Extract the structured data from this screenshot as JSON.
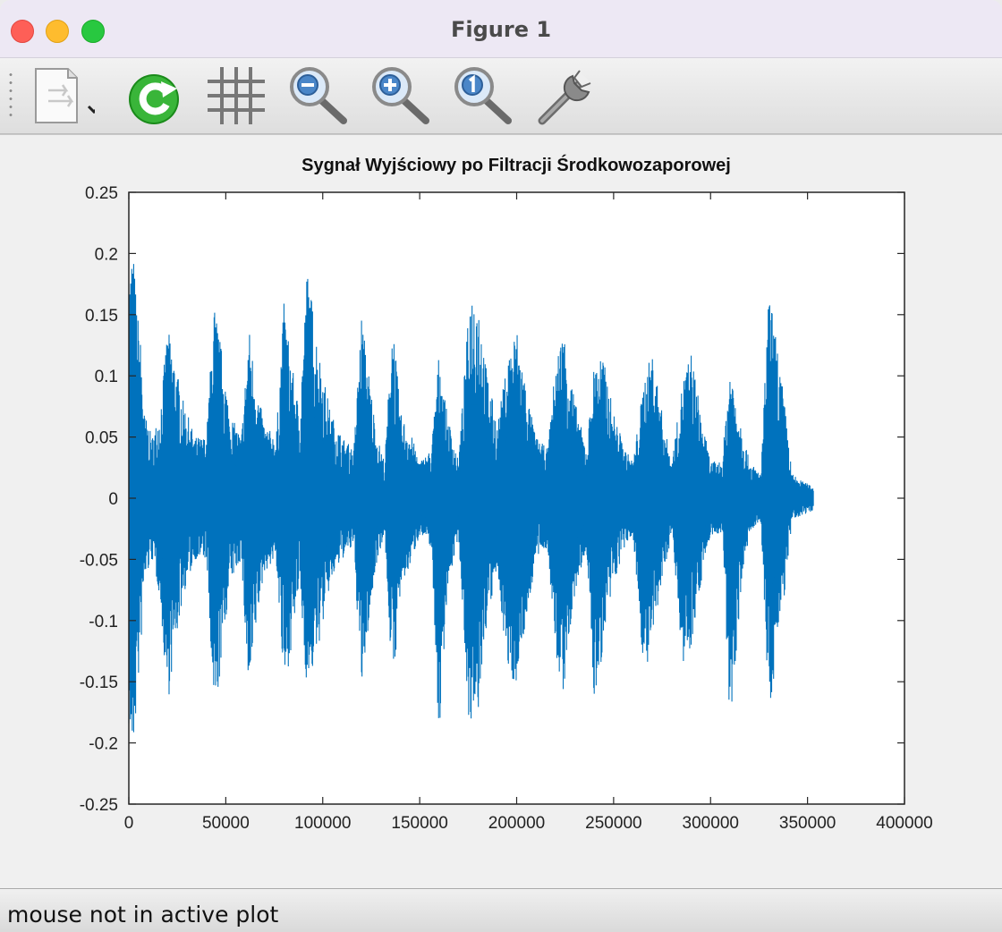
{
  "window": {
    "title": "Figure 1"
  },
  "toolbar": {
    "items": [
      {
        "name": "save-figure",
        "icon": "document-save-icon"
      },
      {
        "name": "reset-axes",
        "icon": "refresh-icon"
      },
      {
        "name": "toggle-grid",
        "icon": "grid-icon"
      },
      {
        "name": "zoom-out",
        "icon": "zoom-out-icon"
      },
      {
        "name": "zoom-in",
        "icon": "zoom-in-icon"
      },
      {
        "name": "zoom-reset",
        "icon": "zoom-1-icon"
      },
      {
        "name": "figure-properties",
        "icon": "wrench-icon"
      }
    ]
  },
  "status": {
    "text": "mouse not in active plot"
  },
  "colors": {
    "line": "#0072bd",
    "background": "#f0f0f0",
    "axes": "#ffffff"
  },
  "chart_data": {
    "type": "line",
    "title": "Sygnał Wyjściowy po Filtracji Środkowozaporowej",
    "xlabel": "",
    "ylabel": "",
    "xlim": [
      0,
      400000
    ],
    "ylim": [
      -0.25,
      0.25
    ],
    "xticks": [
      "0",
      "50000",
      "100000",
      "150000",
      "200000",
      "250000",
      "300000",
      "350000",
      "400000"
    ],
    "yticks": [
      "0.25",
      "0.2",
      "0.15",
      "0.1",
      "0.05",
      "0",
      "-0.05",
      "-0.1",
      "-0.15",
      "-0.2",
      "-0.25"
    ],
    "grid": false,
    "series": [
      {
        "name": "",
        "note_envelope": {
          "x": [
            0,
            2000,
            4000,
            6000,
            8000,
            12000,
            16000,
            20000,
            24000,
            28000,
            34000,
            40000,
            44000,
            48000,
            52000,
            58000,
            62000,
            66000,
            70000,
            76000,
            80000,
            84000,
            88000,
            92000,
            98000,
            104000,
            110000,
            116000,
            120000,
            124000,
            128000,
            132000,
            136000,
            140000,
            146000,
            150000,
            156000,
            160000,
            164000,
            170000,
            176000,
            180000,
            184000,
            190000,
            196000,
            200000,
            206000,
            210000,
            216000,
            220000,
            224000,
            230000,
            236000,
            240000,
            244000,
            250000,
            256000,
            260000,
            266000,
            270000,
            276000,
            280000,
            286000,
            290000,
            296000,
            300000,
            306000,
            310000,
            316000,
            320000,
            326000,
            330000,
            334000,
            338000,
            342000,
            346000,
            350000,
            353000
          ],
          "upper": [
            0.18,
            0.21,
            0.16,
            0.13,
            0.07,
            0.05,
            0.07,
            0.14,
            0.11,
            0.08,
            0.05,
            0.05,
            0.16,
            0.12,
            0.07,
            0.05,
            0.14,
            0.09,
            0.06,
            0.05,
            0.16,
            0.11,
            0.07,
            0.19,
            0.12,
            0.07,
            0.05,
            0.04,
            0.15,
            0.1,
            0.05,
            0.03,
            0.15,
            0.07,
            0.05,
            0.03,
            0.04,
            0.12,
            0.07,
            0.03,
            0.17,
            0.17,
            0.11,
            0.06,
            0.12,
            0.14,
            0.08,
            0.05,
            0.04,
            0.11,
            0.14,
            0.08,
            0.04,
            0.11,
            0.12,
            0.07,
            0.04,
            0.03,
            0.1,
            0.12,
            0.06,
            0.03,
            0.1,
            0.12,
            0.06,
            0.03,
            0.03,
            0.11,
            0.06,
            0.03,
            0.02,
            0.17,
            0.13,
            0.08,
            0.02,
            0.015,
            0.012,
            0.01
          ],
          "lower": [
            -0.19,
            -0.22,
            -0.17,
            -0.13,
            -0.07,
            -0.05,
            -0.08,
            -0.17,
            -0.12,
            -0.08,
            -0.05,
            -0.05,
            -0.19,
            -0.13,
            -0.07,
            -0.05,
            -0.17,
            -0.1,
            -0.06,
            -0.05,
            -0.16,
            -0.12,
            -0.07,
            -0.16,
            -0.12,
            -0.07,
            -0.05,
            -0.04,
            -0.16,
            -0.1,
            -0.05,
            -0.03,
            -0.16,
            -0.08,
            -0.05,
            -0.03,
            -0.04,
            -0.2,
            -0.08,
            -0.03,
            -0.2,
            -0.18,
            -0.11,
            -0.06,
            -0.15,
            -0.15,
            -0.09,
            -0.05,
            -0.04,
            -0.13,
            -0.16,
            -0.08,
            -0.04,
            -0.17,
            -0.13,
            -0.07,
            -0.04,
            -0.03,
            -0.15,
            -0.12,
            -0.06,
            -0.03,
            -0.14,
            -0.12,
            -0.06,
            -0.03,
            -0.03,
            -0.19,
            -0.07,
            -0.03,
            -0.02,
            -0.18,
            -0.13,
            -0.08,
            -0.02,
            -0.015,
            -0.012,
            -0.01
          ]
        }
      }
    ]
  }
}
